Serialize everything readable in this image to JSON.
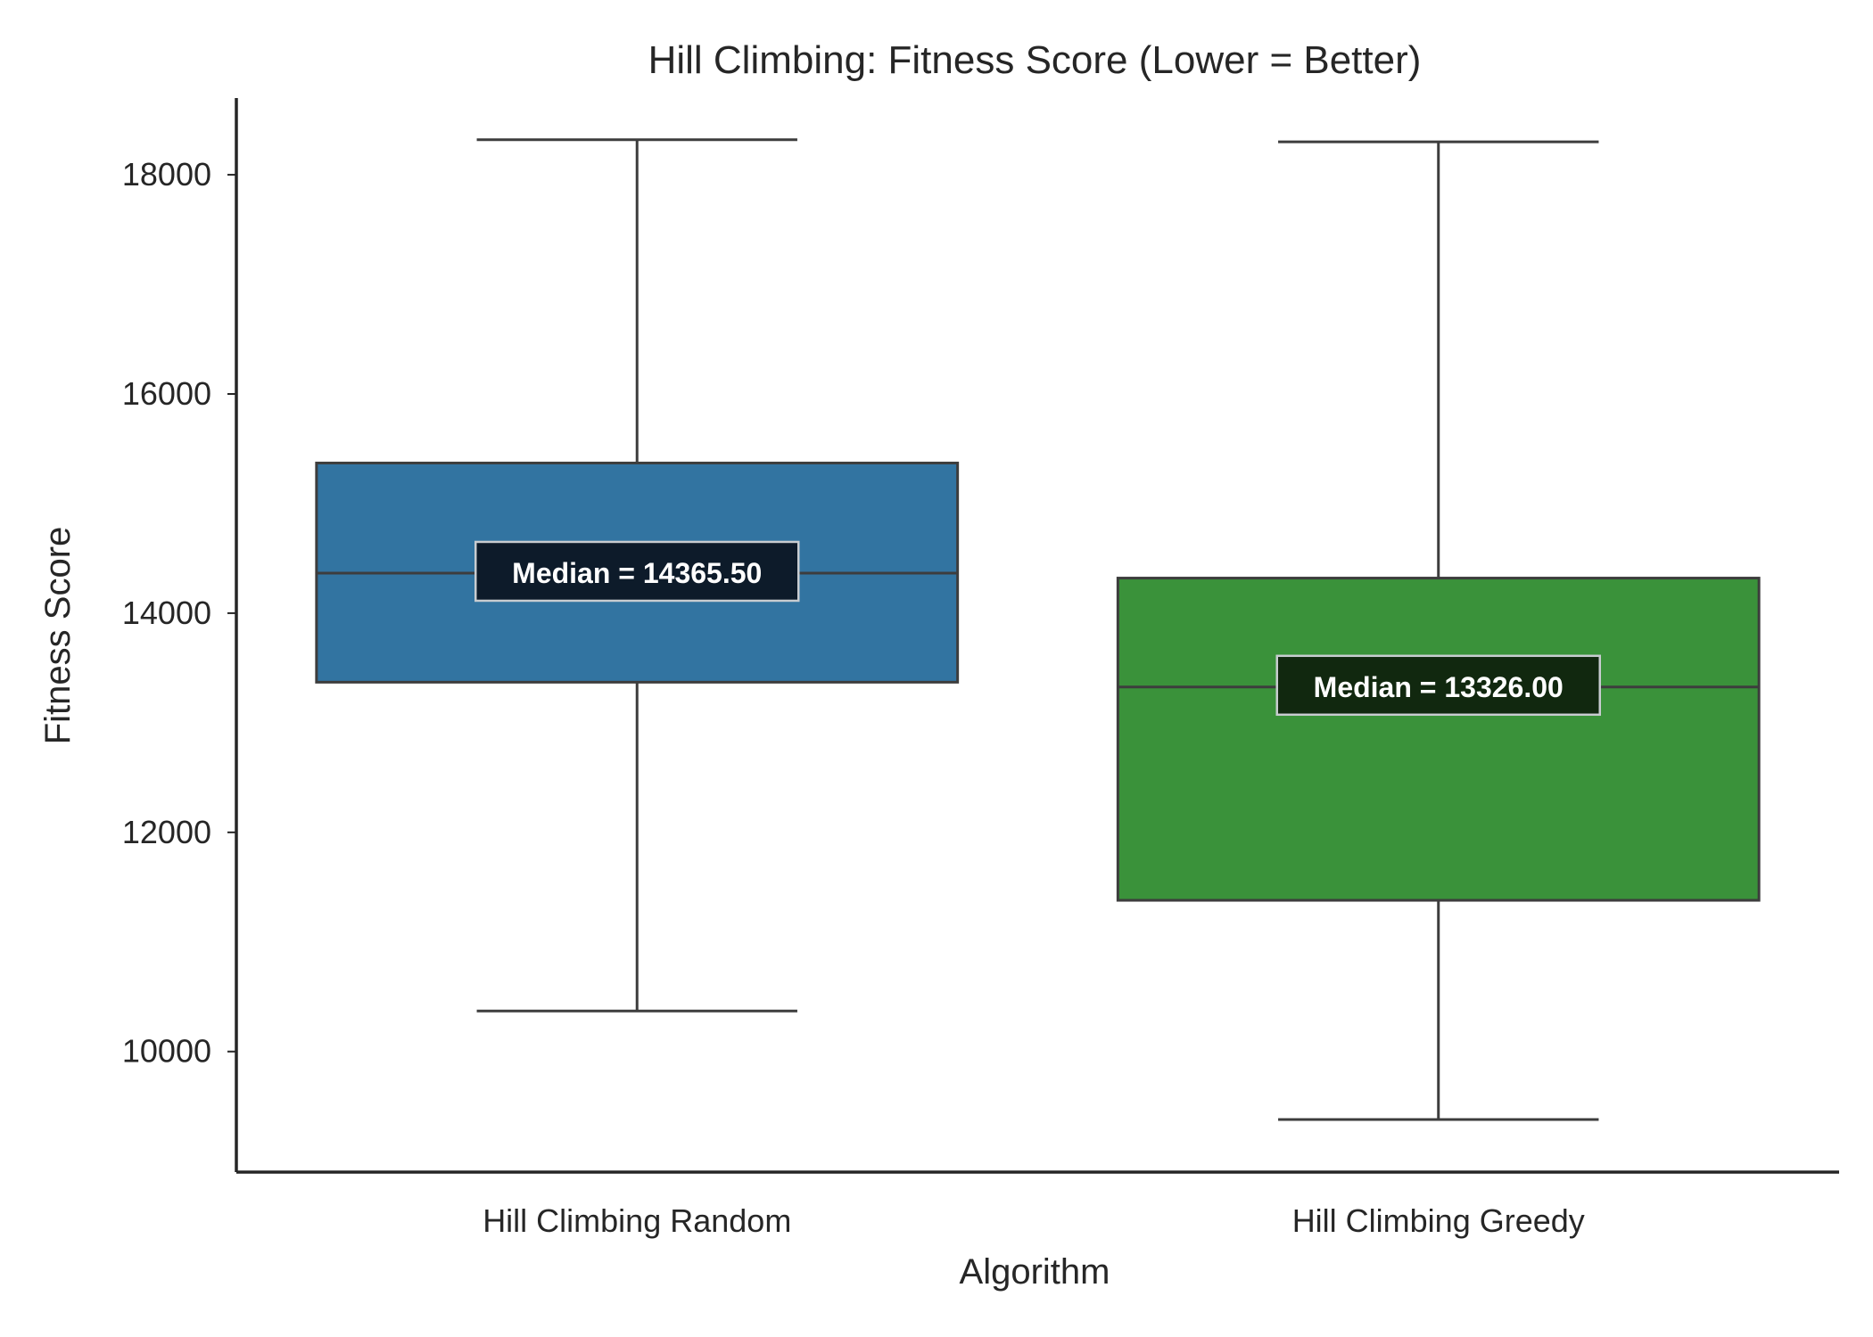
{
  "chart_data": {
    "type": "box",
    "title": "Hill Climbing: Fitness Score (Lower = Better)",
    "xlabel": "Algorithm",
    "ylabel": "Fitness Score",
    "ylim": [
      8900,
      18700
    ],
    "yticks": [
      10000,
      12000,
      14000,
      16000,
      18000
    ],
    "grid": false,
    "series": [
      {
        "category": "Hill Climbing Random",
        "color": "#3274a1",
        "label_bg": "#0d1b2a",
        "whisker_low": 10370,
        "q1": 13370,
        "median": 14365.5,
        "q3": 15370,
        "whisker_high": 18320,
        "median_label": "Median = 14365.50"
      },
      {
        "category": "Hill Climbing Greedy",
        "color": "#3a923a",
        "label_bg": "#11280f",
        "whisker_low": 9380,
        "q1": 11380,
        "median": 13326,
        "q3": 14320,
        "whisker_high": 18300,
        "median_label": "Median = 13326.00"
      }
    ]
  }
}
